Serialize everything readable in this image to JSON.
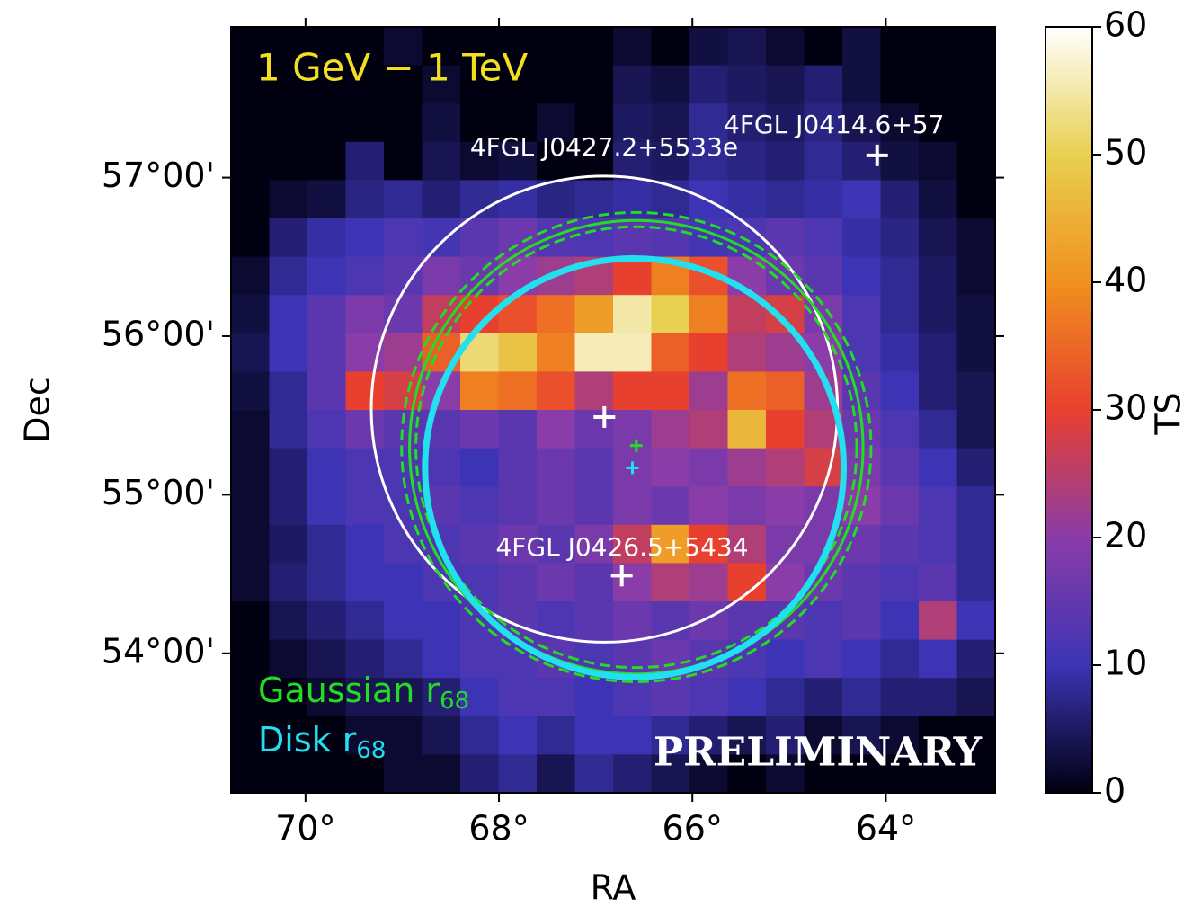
{
  "chart_data": {
    "type": "heatmap",
    "title": "1 GeV − 1 TeV",
    "x_label": "RA",
    "y_label": "Dec",
    "colorbar_label": "TS",
    "watermark": "PRELIMINARY",
    "xlim": [
      70.77,
      62.87
    ],
    "ylim": [
      53.12,
      57.95
    ],
    "xticks": [
      {
        "value": 70,
        "label": "70°"
      },
      {
        "value": 68,
        "label": "68°"
      },
      {
        "value": 66,
        "label": "66°"
      },
      {
        "value": 64,
        "label": "64°"
      }
    ],
    "yticks": [
      {
        "value": 57,
        "label": "57°00'"
      },
      {
        "value": 56,
        "label": "56°00'"
      },
      {
        "value": 55,
        "label": "55°00'"
      },
      {
        "value": 54,
        "label": "54°00'"
      }
    ],
    "zlim": [
      0,
      60
    ],
    "zticks": [
      0,
      10,
      20,
      30,
      40,
      50,
      60
    ],
    "colormap": [
      "#000010",
      "#3c34b4",
      "#8a3ca8",
      "#e8402e",
      "#f0901e",
      "#e8d050",
      "#ffffff"
    ],
    "heatmap": {
      "values": [
        [
          0,
          0,
          0,
          0,
          2,
          0,
          0,
          0,
          0,
          0,
          2,
          0,
          3,
          4,
          2,
          0,
          3,
          0,
          0,
          0
        ],
        [
          0,
          0,
          0,
          0,
          0,
          2,
          0,
          0,
          0,
          0,
          4,
          3,
          6,
          5,
          4,
          6,
          3,
          0,
          0,
          0
        ],
        [
          0,
          0,
          0,
          0,
          0,
          3,
          0,
          0,
          2,
          0,
          5,
          4,
          8,
          6,
          5,
          7,
          4,
          2,
          0,
          0
        ],
        [
          0,
          0,
          0,
          6,
          0,
          4,
          2,
          3,
          0,
          0,
          6,
          5,
          8,
          7,
          6,
          8,
          6,
          3,
          2,
          0
        ],
        [
          0,
          2,
          3,
          7,
          8,
          6,
          8,
          9,
          7,
          8,
          9,
          8,
          10,
          9,
          8,
          9,
          10,
          6,
          3,
          0
        ],
        [
          0,
          6,
          9,
          10,
          12,
          11,
          14,
          16,
          13,
          12,
          14,
          13,
          11,
          12,
          14,
          12,
          9,
          7,
          4,
          2
        ],
        [
          2,
          8,
          10,
          12,
          14,
          18,
          16,
          20,
          22,
          24,
          30,
          38,
          32,
          20,
          16,
          14,
          10,
          8,
          5,
          2
        ],
        [
          3,
          10,
          14,
          18,
          16,
          26,
          30,
          32,
          36,
          42,
          55,
          50,
          38,
          26,
          28,
          18,
          12,
          8,
          5,
          3
        ],
        [
          4,
          10,
          14,
          20,
          22,
          34,
          52,
          48,
          38,
          56,
          56,
          34,
          30,
          24,
          22,
          20,
          12,
          9,
          6,
          3
        ],
        [
          3,
          8,
          14,
          30,
          28,
          20,
          38,
          36,
          32,
          24,
          30,
          30,
          22,
          36,
          34,
          22,
          14,
          10,
          6,
          4
        ],
        [
          2,
          8,
          12,
          16,
          14,
          14,
          16,
          14,
          20,
          16,
          18,
          22,
          24,
          46,
          30,
          24,
          16,
          12,
          8,
          4
        ],
        [
          2,
          6,
          10,
          12,
          12,
          12,
          10,
          14,
          16,
          14,
          18,
          20,
          18,
          22,
          24,
          28,
          18,
          14,
          10,
          6
        ],
        [
          2,
          6,
          10,
          12,
          12,
          14,
          12,
          14,
          16,
          14,
          18,
          16,
          20,
          18,
          20,
          18,
          20,
          16,
          12,
          8
        ],
        [
          2,
          5,
          8,
          10,
          12,
          12,
          14,
          16,
          14,
          18,
          26,
          42,
          30,
          24,
          18,
          18,
          16,
          14,
          12,
          8
        ],
        [
          2,
          6,
          8,
          10,
          10,
          12,
          12,
          14,
          16,
          14,
          20,
          24,
          22,
          30,
          20,
          16,
          14,
          12,
          14,
          8
        ],
        [
          0,
          4,
          6,
          8,
          10,
          10,
          12,
          14,
          12,
          14,
          16,
          14,
          16,
          14,
          14,
          12,
          14,
          10,
          24,
          10
        ],
        [
          0,
          2,
          4,
          6,
          8,
          10,
          12,
          12,
          14,
          12,
          14,
          16,
          14,
          12,
          10,
          12,
          10,
          8,
          10,
          6
        ],
        [
          0,
          0,
          2,
          4,
          4,
          6,
          10,
          12,
          12,
          10,
          12,
          14,
          12,
          10,
          8,
          6,
          8,
          6,
          6,
          4
        ],
        [
          0,
          0,
          0,
          2,
          2,
          4,
          8,
          10,
          8,
          10,
          10,
          8,
          6,
          4,
          6,
          2,
          4,
          2,
          0,
          0
        ],
        [
          0,
          0,
          0,
          0,
          2,
          2,
          6,
          8,
          4,
          8,
          6,
          4,
          2,
          0,
          2,
          0,
          0,
          0,
          0,
          0
        ]
      ]
    },
    "circles": [
      {
        "ra": 66.91,
        "dec": 55.54,
        "r": 1.47,
        "color": "#ffffff",
        "style": "solid"
      },
      {
        "ra": 66.58,
        "dec": 55.3,
        "r": 1.39,
        "color": "#22dd22",
        "style": "dashed"
      },
      {
        "ra": 66.58,
        "dec": 55.3,
        "r": 1.43,
        "color": "#22dd22",
        "style": "solid"
      },
      {
        "ra": 66.58,
        "dec": 55.3,
        "r": 1.48,
        "color": "#22dd22",
        "style": "dashed"
      },
      {
        "ra": 66.6,
        "dec": 55.17,
        "r": 1.32,
        "color": "#22e0f0",
        "style": "thick"
      }
    ],
    "sources": [
      {
        "name": "4FGL J0427.2+5533e",
        "ra": 66.91,
        "dec": 55.49
      },
      {
        "name": "4FGL J0414.6+57",
        "ra": 64.09,
        "dec": 57.14
      },
      {
        "name": "4FGL J0426.5+5434",
        "ra": 66.73,
        "dec": 54.49
      }
    ],
    "fit_centers": [
      {
        "ra": 66.58,
        "dec": 55.31,
        "color": "#22dd22"
      },
      {
        "ra": 66.62,
        "dec": 55.17,
        "color": "#22e0f0"
      }
    ],
    "legend": [
      {
        "label": "Gaussian r",
        "subscript": "68",
        "color": "#22dd22"
      },
      {
        "label": "Disk r",
        "subscript": "68",
        "color": "#22e0f0"
      }
    ]
  }
}
